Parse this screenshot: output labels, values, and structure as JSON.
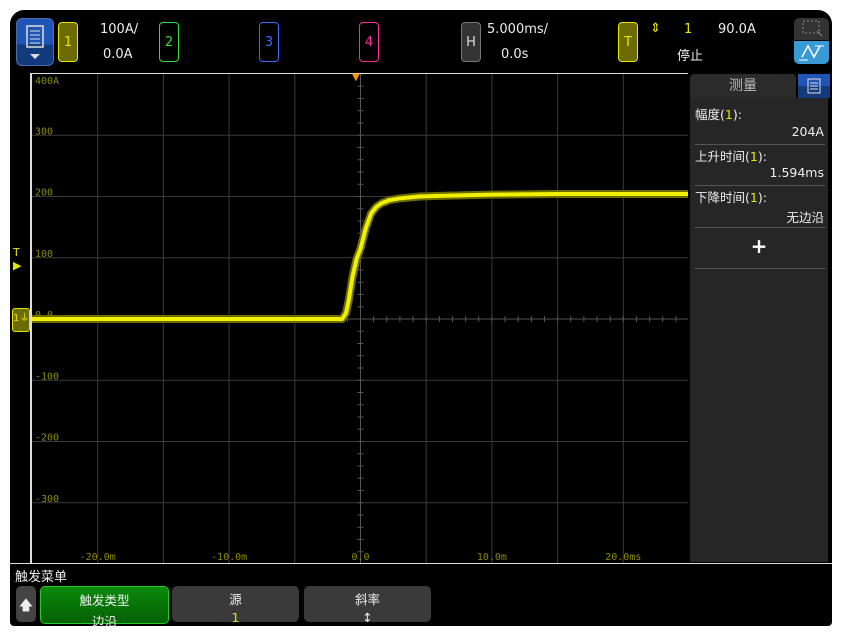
{
  "topbar": {
    "menu_icon": "document-list-icon",
    "channels": [
      {
        "label": "1",
        "color": "#e6e600",
        "scale": "100A/",
        "offset": "0.0A"
      },
      {
        "label": "2",
        "color": "#33dd33"
      },
      {
        "label": "3",
        "color": "#3a6cff"
      },
      {
        "label": "4",
        "color": "#ff2aa0"
      }
    ],
    "horizontal": {
      "label": "H",
      "scale": "5.000ms/",
      "delay": "0.0s"
    },
    "trigger": {
      "label": "T",
      "source": "1",
      "level": "90.0A",
      "status": "停止"
    }
  },
  "plot": {
    "y_labels": [
      "400A",
      "300",
      "200",
      "100",
      "0.0",
      "-100",
      "-200",
      "-300"
    ],
    "x_labels": [
      "-20.0m",
      "-10.0m",
      "0.0",
      "10.0m",
      "20.0ms"
    ],
    "ground_marker": "1",
    "trigger_level_marker": "T",
    "trace_color": "#f0f000"
  },
  "chart_data": {
    "type": "line",
    "xlim": [
      -25,
      25
    ],
    "ylim": [
      -400,
      400
    ],
    "x_unit": "ms",
    "y_unit": "A",
    "grid": true,
    "series": [
      {
        "x": [
          -25,
          -1.4,
          -1.1,
          -0.9,
          -0.6,
          -0.3,
          0,
          0.4,
          0.8,
          1.2,
          1.6,
          2.2,
          3,
          4.5,
          6,
          8,
          10,
          15,
          25
        ],
        "y": [
          0,
          0,
          10,
          30,
          70,
          98,
          115,
          148,
          172,
          183,
          189,
          194,
          197,
          200,
          201,
          202,
          203,
          204,
          204
        ]
      }
    ]
  },
  "measure_panel": {
    "title": "测量",
    "items": [
      {
        "label": "幅度",
        "ch": "1",
        "value": "204A"
      },
      {
        "label": "上升时间",
        "ch": "1",
        "value": "1.594ms"
      },
      {
        "label": "下降时间",
        "ch": "1",
        "value": "无边沿"
      }
    ],
    "add": "+"
  },
  "softkeys": {
    "menu_title": "触发菜单",
    "keys": [
      {
        "label": "触发类型",
        "value": "边沿"
      },
      {
        "label": "源",
        "value": "1"
      },
      {
        "label": "斜率",
        "value": "↕"
      }
    ]
  }
}
